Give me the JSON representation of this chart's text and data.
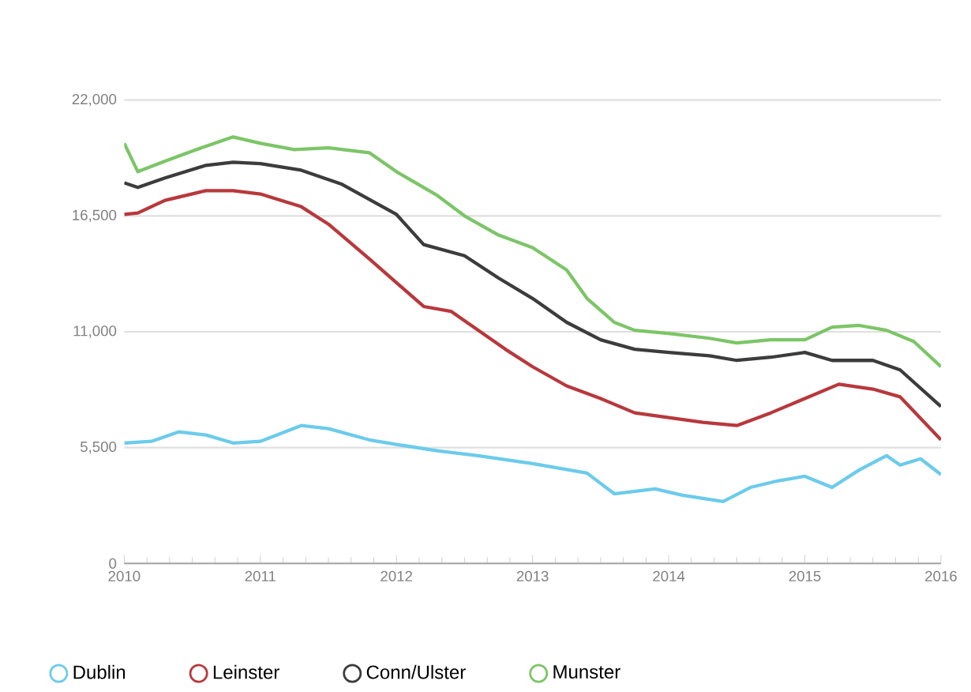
{
  "chart_data": {
    "type": "line",
    "xlim": [
      2010,
      2016
    ],
    "xticks": [
      2010,
      2011,
      2012,
      2013,
      2014,
      2015,
      2016
    ],
    "ylim": [
      0,
      22000
    ],
    "yticks": [
      {
        "value": 0,
        "label": "0"
      },
      {
        "value": 5500,
        "label": "5,500"
      },
      {
        "value": 11000,
        "label": "11,000"
      },
      {
        "value": 16500,
        "label": "16,500"
      },
      {
        "value": 22000,
        "label": "22,000"
      }
    ],
    "grid": "y",
    "legend": "bottom",
    "marker": "none",
    "line_style": "solid",
    "series": [
      {
        "name": "Dublin",
        "color": "#6ccbeb",
        "x": [
          2010,
          2010.2,
          2010.4,
          2010.6,
          2010.8,
          2011.0,
          2011.3,
          2011.5,
          2011.8,
          2012.0,
          2012.3,
          2012.6,
          2013.0,
          2013.4,
          2013.6,
          2013.9,
          2014.1,
          2014.4,
          2014.6,
          2014.8,
          2015.0,
          2015.2,
          2015.4,
          2015.6,
          2015.7,
          2015.85,
          2016.0
        ],
        "values": [
          5720,
          5800,
          6250,
          6100,
          5720,
          5800,
          6550,
          6400,
          5870,
          5650,
          5350,
          5120,
          4740,
          4290,
          3310,
          3540,
          3240,
          2940,
          3610,
          3920,
          4140,
          3610,
          4440,
          5120,
          4670,
          4970,
          4220
        ]
      },
      {
        "name": "Leinster",
        "color": "#b8383c",
        "x": [
          2010,
          2010.1,
          2010.3,
          2010.6,
          2010.8,
          2011.0,
          2011.3,
          2011.5,
          2011.8,
          2012.0,
          2012.2,
          2012.4,
          2012.6,
          2012.8,
          2013.0,
          2013.25,
          2013.5,
          2013.75,
          2014.0,
          2014.25,
          2014.5,
          2014.75,
          2015.0,
          2015.25,
          2015.5,
          2015.7,
          2016.0
        ],
        "values": [
          16570,
          16640,
          17240,
          17700,
          17700,
          17540,
          16940,
          16110,
          14460,
          13330,
          12200,
          11970,
          11070,
          10170,
          9340,
          8430,
          7830,
          7150,
          6930,
          6700,
          6550,
          7150,
          7830,
          8510,
          8280,
          7910,
          5870
        ]
      },
      {
        "name": "Conn/Ulster",
        "color": "#3c3c3c",
        "x": [
          2010,
          2010.1,
          2010.3,
          2010.6,
          2010.8,
          2011.0,
          2011.3,
          2011.6,
          2012.0,
          2012.2,
          2012.5,
          2012.75,
          2013.0,
          2013.25,
          2013.5,
          2013.75,
          2014.0,
          2014.3,
          2014.5,
          2014.75,
          2015.0,
          2015.2,
          2015.5,
          2015.7,
          2016.0
        ],
        "values": [
          18070,
          17850,
          18300,
          18900,
          19050,
          18980,
          18670,
          18000,
          16570,
          15140,
          14610,
          13550,
          12580,
          11450,
          10620,
          10170,
          10020,
          9860,
          9640,
          9790,
          10020,
          9640,
          9640,
          9190,
          7450
        ]
      },
      {
        "name": "Munster",
        "color": "#7cc567",
        "x": [
          2010,
          2010.1,
          2010.3,
          2010.5,
          2010.8,
          2011.0,
          2011.25,
          2011.5,
          2011.8,
          2012.0,
          2012.3,
          2012.5,
          2012.75,
          2013.0,
          2013.25,
          2013.4,
          2013.6,
          2013.75,
          2014.0,
          2014.3,
          2014.5,
          2014.75,
          2015.0,
          2015.2,
          2015.4,
          2015.6,
          2015.8,
          2016.0
        ],
        "values": [
          19950,
          18600,
          19100,
          19580,
          20250,
          19950,
          19650,
          19730,
          19500,
          18600,
          17470,
          16500,
          15590,
          14990,
          13930,
          12580,
          11450,
          11070,
          10920,
          10690,
          10470,
          10620,
          10620,
          11220,
          11300,
          11070,
          10540,
          9340
        ]
      }
    ]
  }
}
